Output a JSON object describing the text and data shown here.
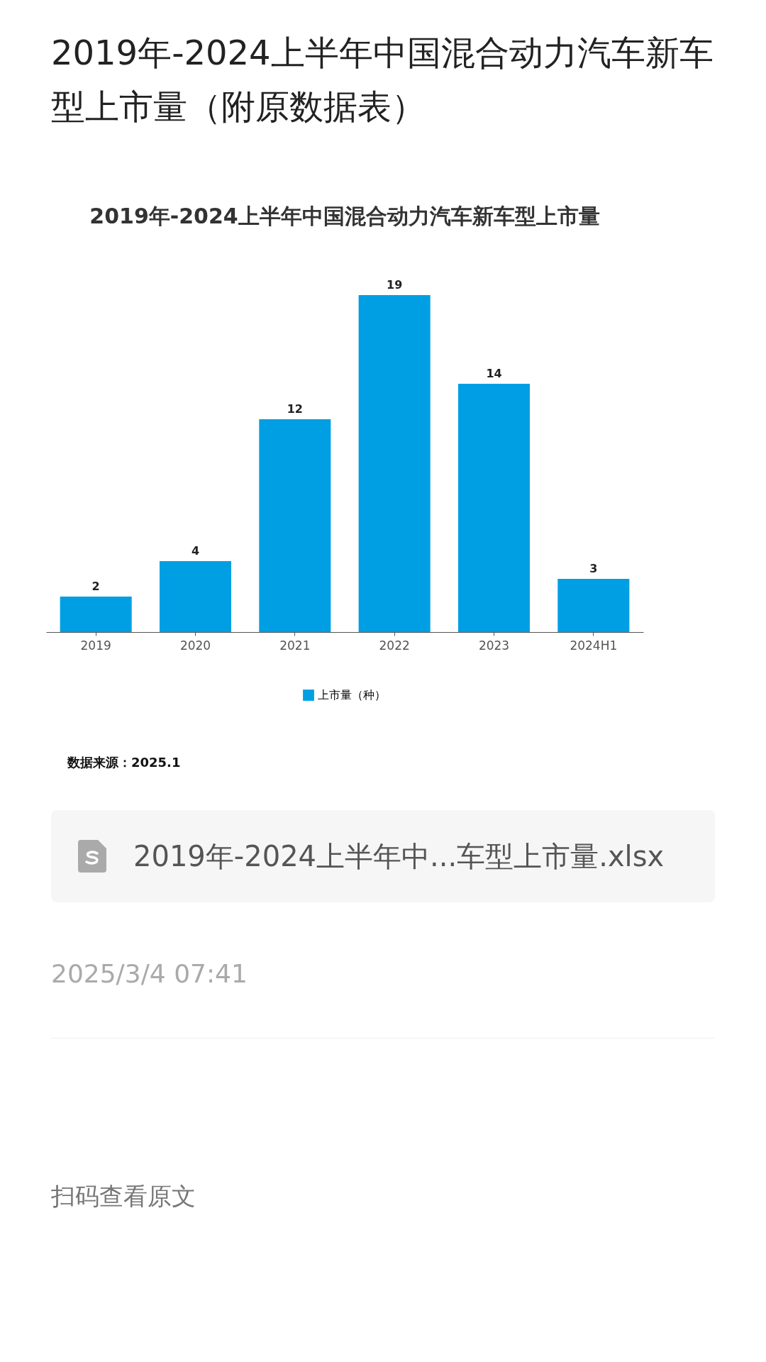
{
  "chart_data": {
    "type": "bar",
    "title": "2019年-2024上半年中国混合动力汽车新车型上市量",
    "categories": [
      "2019",
      "2020",
      "2021",
      "2022",
      "2023",
      "2024H1"
    ],
    "series": [
      {
        "name": "上市量（种）",
        "color": "#009fe3",
        "values": [
          2,
          4,
          12,
          19,
          14,
          3
        ]
      }
    ],
    "data_labels": true,
    "legend": "bottom",
    "annotations": [
      "2019年-2024上半年中国混合动力汽车新车型上市量（附原数据表）",
      "数据来源：2025.1",
      "2019年-2024上半年中...车型上市量.xlsx",
      "2025/3/4 07:41",
      "扫码查看原文"
    ]
  }
}
